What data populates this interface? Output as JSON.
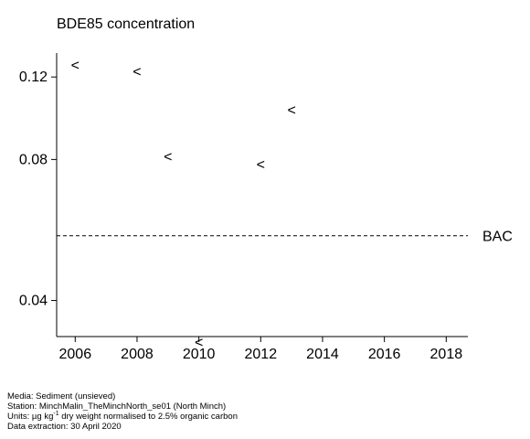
{
  "chart_data": {
    "type": "scatter",
    "title": "BDE85 concentration",
    "xlabel": "",
    "ylabel": "",
    "x_ticks": [
      2006,
      2008,
      2010,
      2012,
      2014,
      2016,
      2018
    ],
    "y_ticks": [
      0.04,
      0.08,
      0.12
    ],
    "y_tick_labels": [
      "0.04",
      "0.08",
      "0.12"
    ],
    "y_scale": "log",
    "xlim": [
      2005.4,
      2018.7
    ],
    "ylim": [
      0.0335,
      0.135
    ],
    "grid": false,
    "marker": "<",
    "points": [
      {
        "x": 2006,
        "y": 0.127
      },
      {
        "x": 2008,
        "y": 0.123
      },
      {
        "x": 2009,
        "y": 0.081
      },
      {
        "x": 2010,
        "y": 0.0325
      },
      {
        "x": 2012,
        "y": 0.078
      },
      {
        "x": 2013,
        "y": 0.102
      }
    ],
    "reference_lines": [
      {
        "label": "BAC",
        "y": 0.055,
        "style": "dashed"
      }
    ]
  },
  "footer": {
    "media": "Media: Sediment (unsieved)",
    "station": "Station: MinchMalin_TheMinchNorth_se01 (North Minch)",
    "units_prefix": "Units: µg kg",
    "units_sup": "-1",
    "units_suffix": " dry weight normalised to 2.5% organic carbon",
    "extraction": "Data extraction: 30 April 2020"
  }
}
